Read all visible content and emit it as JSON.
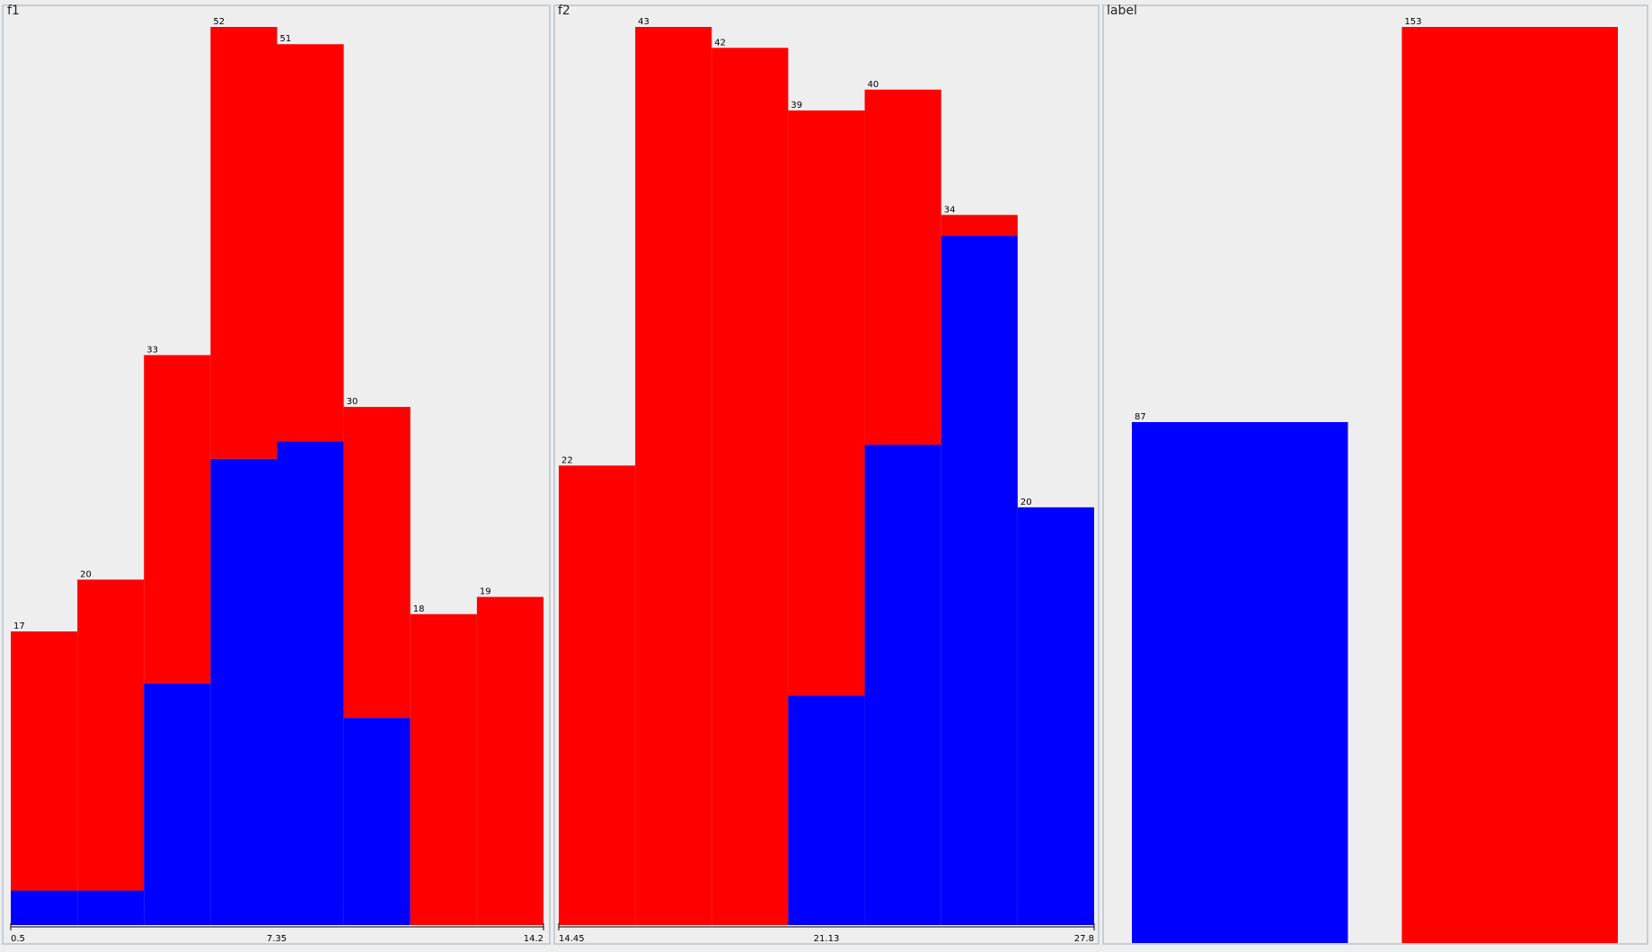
{
  "colors": {
    "class_blue": "#0000ff",
    "class_red": "#ff0000"
  },
  "chart_data": [
    {
      "type": "bar",
      "title": "f1",
      "stacked": true,
      "ymax": 52,
      "bins": 8,
      "totals": [
        17,
        20,
        33,
        52,
        51,
        30,
        18,
        19
      ],
      "series": [
        {
          "values": [
            2,
            2,
            14,
            27,
            28,
            12,
            0,
            0
          ],
          "color": "#0000ff"
        },
        {
          "values": [
            15,
            18,
            19,
            25,
            23,
            18,
            18,
            19
          ],
          "color": "#ff0000"
        }
      ],
      "tick_labels": [
        "0.5",
        "7.35",
        "14.2"
      ]
    },
    {
      "type": "bar",
      "title": "f2",
      "stacked": true,
      "ymax": 43,
      "bins": 7,
      "totals": [
        22,
        43,
        42,
        39,
        40,
        34,
        20
      ],
      "series": [
        {
          "values": [
            0,
            0,
            0,
            11,
            23,
            33,
            20
          ],
          "color": "#0000ff"
        },
        {
          "values": [
            22,
            43,
            42,
            28,
            17,
            1,
            0
          ],
          "color": "#ff0000"
        }
      ],
      "tick_labels": [
        "14.45",
        "21.13",
        "27.8"
      ]
    },
    {
      "type": "bar",
      "title": "label",
      "stacked": false,
      "ymax": 153,
      "bins": 2,
      "totals": [
        87,
        153
      ],
      "series": [
        {
          "values": [
            87,
            0
          ],
          "color": "#0000ff"
        },
        {
          "values": [
            0,
            153
          ],
          "color": "#ff0000"
        }
      ],
      "tick_labels": []
    }
  ]
}
